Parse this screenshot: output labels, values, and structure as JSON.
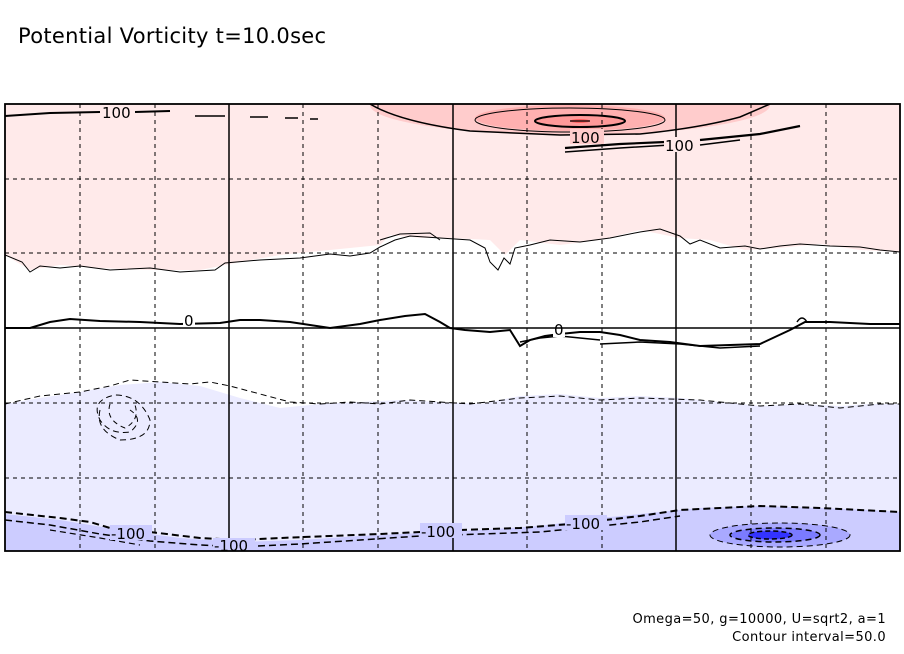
{
  "title": "Potential Vorticity t=10.0sec",
  "footnotes": {
    "params": "Omega=50, g=10000, U=sqrt2, a=1",
    "contour_interval": "Contour interval=50.0"
  },
  "chart_data": {
    "type": "contour",
    "title": "Potential Vorticity t=10.0sec",
    "contour_interval": 50.0,
    "grid": true,
    "contour_labels": [
      "100",
      "100",
      "100",
      "0",
      "0",
      "-100",
      "-100",
      "-100",
      "-100"
    ],
    "colors": {
      "positive_light": "#ffeaea",
      "positive_mid": "#ffcccc",
      "positive_dark": "#ff9b9b",
      "positive_core": "#ff6666",
      "negative_light": "#ebebff",
      "negative_mid": "#ccccff",
      "negative_dark": "#8f8fff",
      "negative_core": "#3333ff",
      "line": "#000000"
    }
  }
}
